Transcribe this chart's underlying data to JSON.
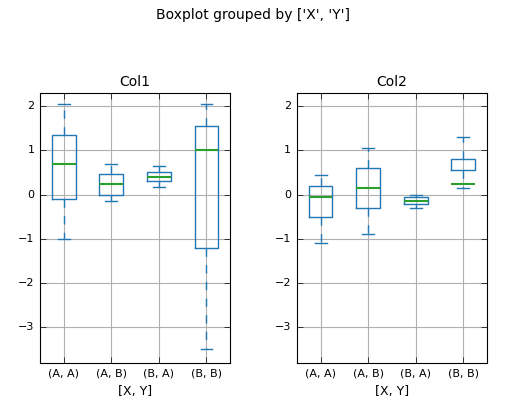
{
  "title": "Boxplot grouped by ['X', 'Y']",
  "col1_title": "Col1",
  "col2_title": "Col2",
  "xlabel": "[X, Y]",
  "xticklabels": [
    "(A, A)",
    "(A, B)",
    "(B, A)",
    "(B, B)"
  ],
  "col1_boxes": [
    {
      "whislo": -1.0,
      "q1": -0.1,
      "med": 0.7,
      "q3": 1.35,
      "whishi": 2.05
    },
    {
      "whislo": -0.15,
      "q1": 0.0,
      "med": 0.25,
      "q3": 0.47,
      "whishi": 0.7
    },
    {
      "whislo": 0.18,
      "q1": 0.3,
      "med": 0.4,
      "q3": 0.5,
      "whishi": 0.65
    },
    {
      "whislo": -3.5,
      "q1": -1.2,
      "med": 1.0,
      "q3": 1.55,
      "whishi": 2.05
    }
  ],
  "col2_boxes": [
    {
      "whislo": -1.1,
      "q1": -0.5,
      "med": -0.05,
      "q3": 0.2,
      "whishi": 0.45
    },
    {
      "whislo": -0.9,
      "q1": -0.3,
      "med": 0.15,
      "q3": 0.6,
      "whishi": 1.05
    },
    {
      "whislo": -0.3,
      "q1": -0.22,
      "med": -0.15,
      "q3": -0.05,
      "whishi": -0.0
    },
    {
      "whislo": 0.15,
      "q1": 0.55,
      "med": 0.25,
      "q3": 0.8,
      "whishi": 1.3
    }
  ],
  "box_color": "#1f77b4",
  "median_color": "#2ca02c",
  "grid_color": "#b0b0b0",
  "title_fontsize": 10,
  "subtitle_fontsize": 10,
  "tick_fontsize": 8,
  "xlabel_fontsize": 9,
  "col1_ylim": [
    -3.8,
    2.3
  ],
  "col2_ylim": [
    -3.8,
    2.3
  ]
}
